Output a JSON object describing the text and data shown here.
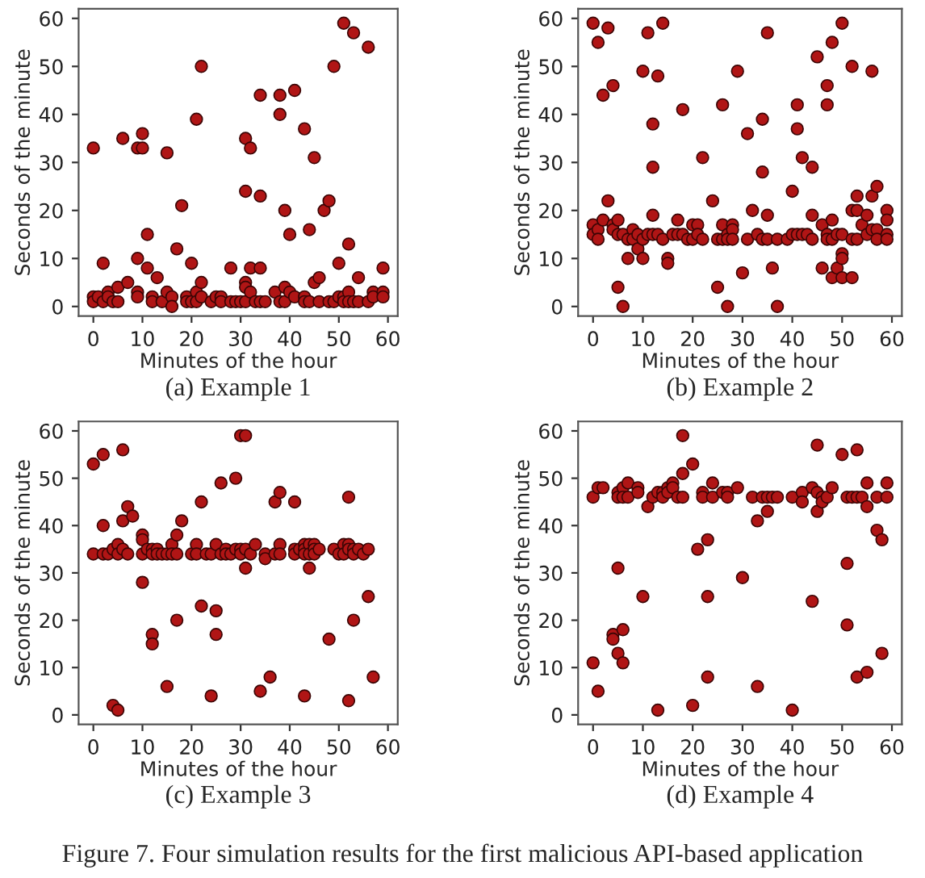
{
  "chart_data": [
    {
      "type": "scatter",
      "title": "(a) Example 1",
      "xlabel": "Minutes of the hour",
      "ylabel": "Seconds of the minute",
      "xlim": [
        -3,
        62
      ],
      "ylim": [
        -2,
        62
      ],
      "xticks": [
        0,
        10,
        20,
        30,
        40,
        50,
        60
      ],
      "yticks": [
        0,
        10,
        20,
        30,
        40,
        50,
        60
      ],
      "marker": "circle",
      "grid": false,
      "legend": false,
      "series": [
        {
          "color": "#b01515",
          "x": [
            0,
            0,
            0,
            1,
            2,
            2,
            3,
            3,
            4,
            5,
            5,
            6,
            7,
            9,
            9,
            9,
            9,
            10,
            10,
            11,
            11,
            12,
            12,
            13,
            14,
            15,
            15,
            16,
            16,
            17,
            18,
            19,
            19,
            20,
            20,
            21,
            21,
            21,
            22,
            22,
            22,
            24,
            25,
            26,
            26,
            28,
            28,
            29,
            30,
            31,
            31,
            31,
            31,
            31,
            32,
            32,
            32,
            33,
            34,
            34,
            34,
            34,
            35,
            37,
            38,
            38,
            38,
            39,
            39,
            39,
            40,
            40,
            41,
            41,
            43,
            43,
            43,
            44,
            44,
            45,
            45,
            46,
            46,
            47,
            48,
            48,
            49,
            49,
            50,
            50,
            51,
            51,
            51,
            52,
            52,
            52,
            53,
            53,
            54,
            54,
            56,
            56,
            57,
            57,
            59,
            59,
            59
          ],
          "values": [
            33,
            2,
            1,
            2,
            9,
            1,
            3,
            2,
            1,
            4,
            1,
            35,
            5,
            33,
            10,
            3,
            2,
            36,
            33,
            15,
            8,
            2,
            1,
            6,
            1,
            32,
            3,
            2,
            0,
            12,
            21,
            2,
            1,
            9,
            1,
            39,
            3,
            1,
            50,
            5,
            2,
            1,
            2,
            2,
            1,
            8,
            1,
            1,
            1,
            35,
            24,
            5,
            4,
            1,
            33,
            8,
            3,
            1,
            44,
            23,
            8,
            1,
            1,
            3,
            44,
            40,
            1,
            20,
            4,
            1,
            15,
            3,
            45,
            2,
            37,
            2,
            1,
            16,
            1,
            31,
            5,
            6,
            1,
            20,
            22,
            1,
            50,
            1,
            9,
            2,
            59,
            2,
            1,
            13,
            3,
            1,
            57,
            1,
            6,
            1,
            54,
            1,
            3,
            2,
            8,
            3,
            2
          ]
        }
      ]
    },
    {
      "type": "scatter",
      "title": "(b) Example 2",
      "xlabel": "Minutes of the hour",
      "ylabel": "Seconds of the minute",
      "xlim": [
        -3,
        62
      ],
      "ylim": [
        -2,
        62
      ],
      "xticks": [
        0,
        10,
        20,
        30,
        40,
        50,
        60
      ],
      "yticks": [
        0,
        10,
        20,
        30,
        40,
        50,
        60
      ],
      "marker": "circle",
      "grid": false,
      "legend": false,
      "series": [
        {
          "color": "#b01515",
          "x": [
            0,
            0,
            0,
            1,
            1,
            1,
            2,
            2,
            3,
            3,
            4,
            4,
            4,
            5,
            5,
            5,
            6,
            6,
            7,
            7,
            8,
            8,
            9,
            9,
            10,
            10,
            10,
            11,
            11,
            12,
            12,
            12,
            12,
            13,
            13,
            14,
            14,
            15,
            15,
            16,
            17,
            17,
            18,
            18,
            19,
            20,
            20,
            21,
            21,
            22,
            22,
            24,
            25,
            25,
            26,
            26,
            26,
            27,
            27,
            27,
            28,
            28,
            28,
            29,
            30,
            31,
            31,
            32,
            33,
            34,
            34,
            34,
            35,
            35,
            35,
            36,
            37,
            37,
            39,
            40,
            40,
            41,
            41,
            41,
            42,
            42,
            43,
            44,
            44,
            44,
            45,
            46,
            46,
            47,
            47,
            47,
            47,
            48,
            48,
            48,
            48,
            49,
            49,
            50,
            50,
            50,
            50,
            50,
            52,
            52,
            52,
            52,
            53,
            53,
            53,
            54,
            55,
            55,
            56,
            56,
            56,
            57,
            57,
            57,
            59,
            59,
            59,
            59
          ],
          "values": [
            59,
            17,
            15,
            55,
            16,
            14,
            44,
            18,
            58,
            22,
            46,
            17,
            16,
            18,
            15,
            4,
            15,
            0,
            14,
            10,
            16,
            14,
            15,
            12,
            49,
            14,
            10,
            57,
            15,
            38,
            29,
            19,
            15,
            48,
            15,
            59,
            14,
            10,
            9,
            15,
            18,
            15,
            41,
            15,
            14,
            17,
            14,
            17,
            15,
            31,
            14,
            22,
            14,
            4,
            42,
            17,
            14,
            15,
            14,
            0,
            17,
            16,
            14,
            49,
            7,
            36,
            14,
            20,
            15,
            39,
            28,
            14,
            57,
            19,
            14,
            8,
            14,
            0,
            14,
            24,
            15,
            42,
            37,
            15,
            31,
            15,
            15,
            29,
            19,
            14,
            52,
            17,
            8,
            46,
            42,
            15,
            14,
            55,
            18,
            14,
            6,
            15,
            8,
            59,
            15,
            11,
            10,
            6,
            50,
            20,
            14,
            6,
            23,
            20,
            14,
            17,
            19,
            15,
            49,
            23,
            16,
            25,
            16,
            14,
            20,
            18,
            15,
            14
          ]
        }
      ]
    },
    {
      "type": "scatter",
      "title": "(c) Example 3",
      "xlabel": "Minutes of the hour",
      "ylabel": "Seconds of the minute",
      "xlim": [
        -3,
        62
      ],
      "ylim": [
        -2,
        62
      ],
      "xticks": [
        0,
        10,
        20,
        30,
        40,
        50,
        60
      ],
      "yticks": [
        0,
        10,
        20,
        30,
        40,
        50,
        60
      ],
      "marker": "circle",
      "grid": false,
      "legend": false,
      "series": [
        {
          "color": "#b01515",
          "x": [
            0,
            0,
            2,
            2,
            2,
            3,
            4,
            4,
            5,
            5,
            5,
            6,
            6,
            6,
            7,
            7,
            8,
            10,
            10,
            10,
            10,
            11,
            12,
            12,
            12,
            12,
            13,
            13,
            14,
            15,
            15,
            16,
            16,
            17,
            17,
            17,
            18,
            20,
            21,
            21,
            22,
            22,
            23,
            24,
            24,
            25,
            25,
            25,
            26,
            26,
            27,
            27,
            28,
            29,
            29,
            30,
            30,
            30,
            31,
            31,
            31,
            32,
            33,
            34,
            35,
            35,
            36,
            37,
            37,
            38,
            38,
            38,
            41,
            41,
            41,
            42,
            43,
            43,
            43,
            43,
            44,
            44,
            44,
            45,
            45,
            45,
            46,
            48,
            49,
            50,
            51,
            51,
            52,
            52,
            52,
            52,
            53,
            53,
            53,
            54,
            55,
            56,
            56,
            57
          ],
          "values": [
            53,
            34,
            55,
            40,
            34,
            34,
            35,
            2,
            36,
            34,
            1,
            56,
            41,
            35,
            44,
            34,
            42,
            38,
            37,
            34,
            28,
            35,
            35,
            34,
            17,
            15,
            35,
            34,
            34,
            34,
            6,
            36,
            34,
            38,
            34,
            20,
            41,
            34,
            36,
            34,
            45,
            23,
            34,
            34,
            4,
            36,
            22,
            17,
            49,
            34,
            35,
            34,
            34,
            50,
            35,
            59,
            35,
            34,
            59,
            35,
            31,
            34,
            36,
            5,
            34,
            33,
            8,
            45,
            34,
            47,
            36,
            34,
            45,
            35,
            34,
            35,
            36,
            35,
            34,
            4,
            36,
            34,
            31,
            36,
            35,
            34,
            35,
            16,
            35,
            34,
            36,
            34,
            46,
            36,
            35,
            3,
            35,
            34,
            20,
            35,
            34,
            35,
            25,
            8
          ]
        }
      ]
    },
    {
      "type": "scatter",
      "title": "(d) Example 4",
      "xlabel": "Minutes of the hour",
      "ylabel": "Seconds of the minute",
      "xlim": [
        -3,
        62
      ],
      "ylim": [
        -2,
        62
      ],
      "xticks": [
        0,
        10,
        20,
        30,
        40,
        50,
        60
      ],
      "yticks": [
        0,
        10,
        20,
        30,
        40,
        50,
        60
      ],
      "marker": "circle",
      "grid": false,
      "legend": false,
      "annotations": [
        "Figure 7. Four simulation results for the first malicious API-based application"
      ],
      "series": [
        {
          "color": "#b01515",
          "x": [
            0,
            0,
            1,
            1,
            2,
            4,
            4,
            5,
            5,
            5,
            5,
            6,
            6,
            6,
            6,
            7,
            7,
            9,
            9,
            10,
            11,
            12,
            13,
            13,
            14,
            14,
            15,
            15,
            16,
            16,
            17,
            18,
            18,
            18,
            20,
            20,
            21,
            22,
            22,
            23,
            23,
            23,
            24,
            24,
            26,
            27,
            27,
            29,
            30,
            32,
            33,
            33,
            34,
            35,
            35,
            36,
            37,
            40,
            40,
            42,
            42,
            44,
            44,
            45,
            45,
            45,
            46,
            46,
            47,
            48,
            50,
            51,
            51,
            51,
            52,
            53,
            53,
            53,
            54,
            55,
            55,
            55,
            57,
            57,
            58,
            58,
            59,
            59
          ],
          "values": [
            46,
            11,
            48,
            5,
            48,
            17,
            16,
            47,
            46,
            31,
            13,
            48,
            46,
            18,
            11,
            49,
            46,
            48,
            47,
            25,
            44,
            46,
            47,
            1,
            47,
            46,
            48,
            47,
            49,
            48,
            46,
            59,
            51,
            46,
            53,
            2,
            35,
            47,
            46,
            37,
            25,
            8,
            49,
            46,
            47,
            47,
            46,
            48,
            29,
            46,
            41,
            6,
            46,
            46,
            43,
            46,
            46,
            46,
            1,
            47,
            45,
            48,
            24,
            57,
            47,
            43,
            46,
            45,
            46,
            48,
            55,
            46,
            32,
            19,
            46,
            56,
            46,
            8,
            46,
            49,
            44,
            9,
            46,
            39,
            37,
            13,
            49,
            46
          ]
        }
      ]
    }
  ]
}
